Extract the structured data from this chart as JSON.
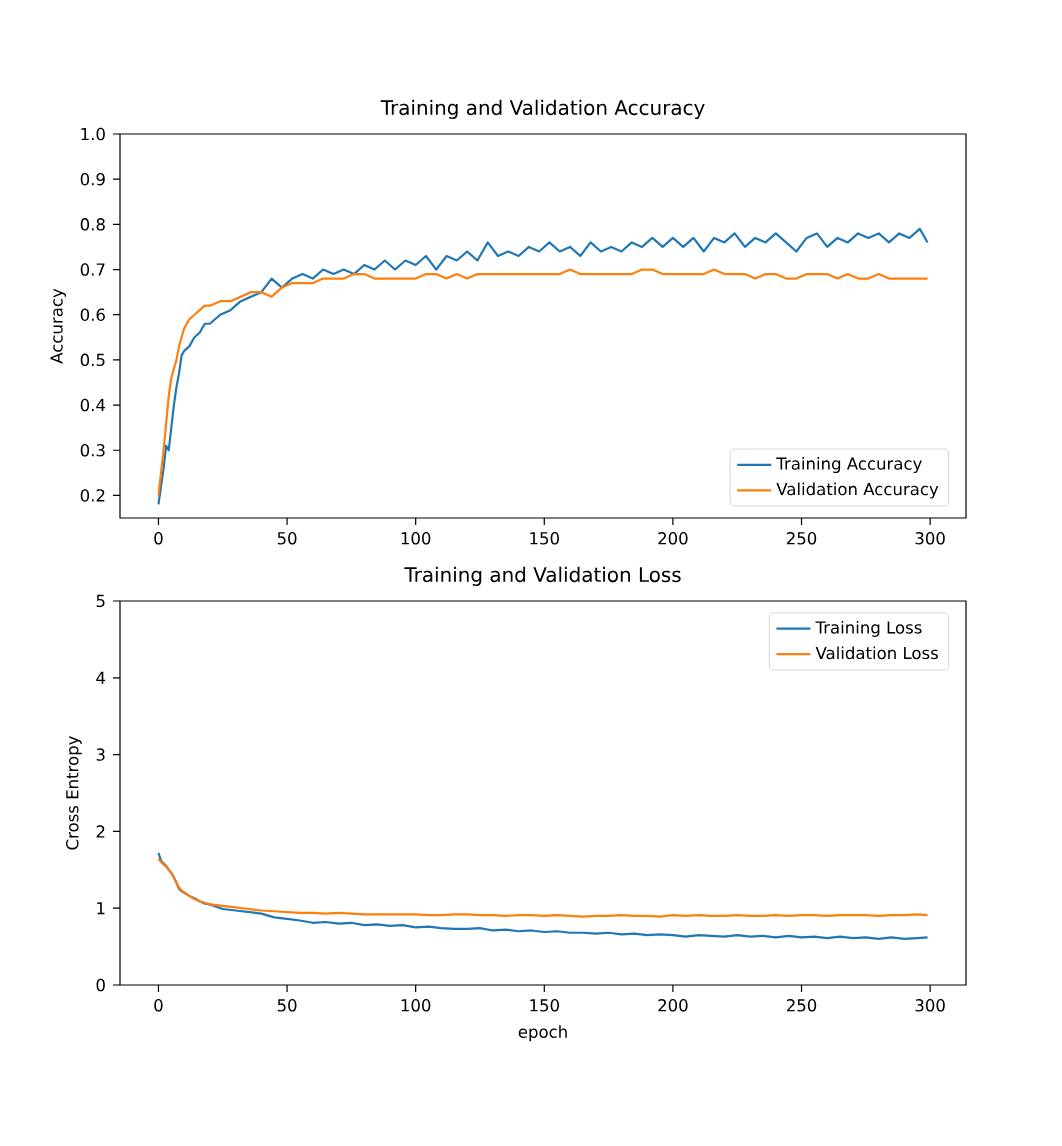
{
  "chart_data": [
    {
      "type": "line",
      "title": "Training and Validation Accuracy",
      "ylabel": "Accuracy",
      "x": [
        0,
        1,
        2,
        3,
        4,
        5,
        6,
        7,
        8,
        9,
        10,
        12,
        14,
        16,
        18,
        20,
        24,
        28,
        32,
        36,
        40,
        44,
        48,
        52,
        56,
        60,
        64,
        68,
        72,
        76,
        80,
        84,
        88,
        92,
        96,
        100,
        104,
        108,
        112,
        116,
        120,
        124,
        128,
        132,
        136,
        140,
        144,
        148,
        152,
        156,
        160,
        164,
        168,
        172,
        176,
        180,
        184,
        188,
        192,
        196,
        200,
        204,
        208,
        212,
        216,
        220,
        224,
        228,
        232,
        236,
        240,
        244,
        248,
        252,
        256,
        260,
        264,
        268,
        272,
        276,
        280,
        284,
        288,
        292,
        296,
        299
      ],
      "series": [
        {
          "name": "Training Accuracy",
          "color": "#1f77b4",
          "values": [
            0.18,
            0.22,
            0.26,
            0.31,
            0.3,
            0.35,
            0.4,
            0.44,
            0.47,
            0.51,
            0.52,
            0.53,
            0.55,
            0.56,
            0.58,
            0.58,
            0.6,
            0.61,
            0.63,
            0.64,
            0.65,
            0.68,
            0.66,
            0.68,
            0.69,
            0.68,
            0.7,
            0.69,
            0.7,
            0.69,
            0.71,
            0.7,
            0.72,
            0.7,
            0.72,
            0.71,
            0.73,
            0.7,
            0.73,
            0.72,
            0.74,
            0.72,
            0.76,
            0.73,
            0.74,
            0.73,
            0.75,
            0.74,
            0.76,
            0.74,
            0.75,
            0.73,
            0.76,
            0.74,
            0.75,
            0.74,
            0.76,
            0.75,
            0.77,
            0.75,
            0.77,
            0.75,
            0.77,
            0.74,
            0.77,
            0.76,
            0.78,
            0.75,
            0.77,
            0.76,
            0.78,
            0.76,
            0.74,
            0.77,
            0.78,
            0.75,
            0.77,
            0.76,
            0.78,
            0.77,
            0.78,
            0.76,
            0.78,
            0.77,
            0.79,
            0.76
          ]
        },
        {
          "name": "Validation Accuracy",
          "color": "#ff7f0e",
          "values": [
            0.2,
            0.25,
            0.3,
            0.36,
            0.42,
            0.46,
            0.48,
            0.5,
            0.53,
            0.55,
            0.57,
            0.59,
            0.6,
            0.61,
            0.62,
            0.62,
            0.63,
            0.63,
            0.64,
            0.65,
            0.65,
            0.64,
            0.66,
            0.67,
            0.67,
            0.67,
            0.68,
            0.68,
            0.68,
            0.69,
            0.69,
            0.68,
            0.68,
            0.68,
            0.68,
            0.68,
            0.69,
            0.69,
            0.68,
            0.69,
            0.68,
            0.69,
            0.69,
            0.69,
            0.69,
            0.69,
            0.69,
            0.69,
            0.69,
            0.69,
            0.7,
            0.69,
            0.69,
            0.69,
            0.69,
            0.69,
            0.69,
            0.7,
            0.7,
            0.69,
            0.69,
            0.69,
            0.69,
            0.69,
            0.7,
            0.69,
            0.69,
            0.69,
            0.68,
            0.69,
            0.69,
            0.68,
            0.68,
            0.69,
            0.69,
            0.69,
            0.68,
            0.69,
            0.68,
            0.68,
            0.69,
            0.68,
            0.68,
            0.68,
            0.68,
            0.68
          ]
        }
      ],
      "xlim": [
        -14.95,
        313.95
      ],
      "ylim": [
        0.15,
        1.0
      ],
      "xticks": [
        0,
        50,
        100,
        150,
        200,
        250,
        300
      ],
      "yticks": [
        0.2,
        0.3,
        0.4,
        0.5,
        0.6,
        0.7,
        0.8,
        0.9,
        {
          "value": 1,
          "label": "1.0"
        }
      ],
      "legend": "bottom right"
    },
    {
      "type": "line",
      "title": "Training and Validation Loss",
      "xlabel": "epoch",
      "ylabel": "Cross Entropy",
      "x": [
        0,
        1,
        2,
        3,
        4,
        5,
        6,
        7,
        8,
        9,
        10,
        12,
        14,
        16,
        18,
        20,
        25,
        30,
        35,
        40,
        45,
        50,
        55,
        60,
        65,
        70,
        75,
        80,
        85,
        90,
        95,
        100,
        105,
        110,
        115,
        120,
        125,
        130,
        135,
        140,
        145,
        150,
        155,
        160,
        165,
        170,
        175,
        180,
        185,
        190,
        195,
        200,
        205,
        210,
        215,
        220,
        225,
        230,
        235,
        240,
        245,
        250,
        255,
        260,
        265,
        270,
        275,
        280,
        285,
        290,
        295,
        299
      ],
      "series": [
        {
          "name": "Training Loss",
          "color": "#1f77b4",
          "values": [
            1.72,
            1.62,
            1.58,
            1.55,
            1.5,
            1.46,
            1.4,
            1.33,
            1.25,
            1.22,
            1.2,
            1.16,
            1.13,
            1.09,
            1.06,
            1.05,
            0.99,
            0.97,
            0.95,
            0.93,
            0.88,
            0.86,
            0.84,
            0.81,
            0.82,
            0.8,
            0.81,
            0.78,
            0.79,
            0.77,
            0.78,
            0.75,
            0.76,
            0.74,
            0.73,
            0.73,
            0.74,
            0.71,
            0.72,
            0.7,
            0.71,
            0.69,
            0.7,
            0.68,
            0.68,
            0.67,
            0.68,
            0.66,
            0.67,
            0.65,
            0.66,
            0.65,
            0.63,
            0.65,
            0.64,
            0.63,
            0.65,
            0.63,
            0.64,
            0.62,
            0.64,
            0.62,
            0.63,
            0.61,
            0.63,
            0.61,
            0.62,
            0.6,
            0.62,
            0.6,
            0.61,
            0.62
          ]
        },
        {
          "name": "Validation Loss",
          "color": "#ff7f0e",
          "values": [
            1.65,
            1.6,
            1.57,
            1.54,
            1.5,
            1.46,
            1.4,
            1.33,
            1.27,
            1.23,
            1.21,
            1.16,
            1.12,
            1.09,
            1.07,
            1.05,
            1.03,
            1.01,
            0.99,
            0.97,
            0.96,
            0.95,
            0.94,
            0.94,
            0.93,
            0.94,
            0.93,
            0.92,
            0.92,
            0.92,
            0.92,
            0.92,
            0.91,
            0.91,
            0.92,
            0.92,
            0.91,
            0.91,
            0.9,
            0.91,
            0.91,
            0.9,
            0.91,
            0.9,
            0.89,
            0.9,
            0.9,
            0.91,
            0.9,
            0.9,
            0.89,
            0.91,
            0.9,
            0.91,
            0.9,
            0.9,
            0.91,
            0.9,
            0.9,
            0.91,
            0.9,
            0.91,
            0.91,
            0.9,
            0.91,
            0.91,
            0.91,
            0.9,
            0.91,
            0.91,
            0.92,
            0.91
          ]
        }
      ],
      "xlim": [
        -14.95,
        313.95
      ],
      "ylim": [
        0,
        5
      ],
      "xticks": [
        0,
        50,
        100,
        150,
        200,
        250,
        300
      ],
      "yticks": [
        0,
        1,
        2,
        3,
        4,
        5
      ],
      "legend": "top right"
    }
  ]
}
